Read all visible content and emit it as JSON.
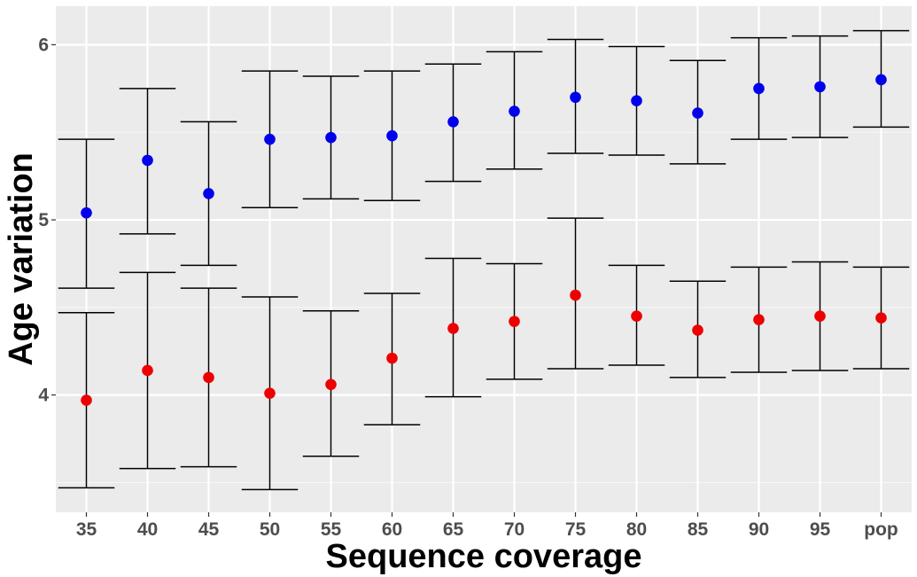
{
  "chart_data": {
    "type": "scatter",
    "title": "",
    "xlabel": "Sequence coverage",
    "ylabel": "Age variation",
    "categories": [
      "35",
      "40",
      "45",
      "50",
      "55",
      "60",
      "65",
      "70",
      "75",
      "80",
      "85",
      "90",
      "95",
      "pop"
    ],
    "yticks": [
      4,
      5,
      6
    ],
    "ylim": [
      3.33,
      6.22
    ],
    "grid": true,
    "legend": "none",
    "series": [
      {
        "color": "#0000ee",
        "values": [
          5.04,
          5.34,
          5.15,
          5.46,
          5.47,
          5.48,
          5.56,
          5.62,
          5.7,
          5.68,
          5.61,
          5.75,
          5.76,
          5.8
        ],
        "lower": [
          4.61,
          4.92,
          4.74,
          5.07,
          5.12,
          5.11,
          5.22,
          5.29,
          5.38,
          5.37,
          5.32,
          5.46,
          5.47,
          5.53
        ],
        "upper": [
          5.46,
          5.75,
          5.56,
          5.85,
          5.82,
          5.85,
          5.89,
          5.96,
          6.03,
          5.99,
          5.91,
          6.04,
          6.05,
          6.08
        ]
      },
      {
        "color": "#ee0000",
        "values": [
          3.97,
          4.14,
          4.1,
          4.01,
          4.06,
          4.21,
          4.38,
          4.42,
          4.57,
          4.45,
          4.37,
          4.43,
          4.45,
          4.44
        ],
        "lower": [
          3.47,
          3.58,
          3.59,
          3.46,
          3.65,
          3.83,
          3.99,
          4.09,
          4.15,
          4.17,
          4.1,
          4.13,
          4.14,
          4.15
        ],
        "upper": [
          4.47,
          4.7,
          4.61,
          4.56,
          4.48,
          4.58,
          4.78,
          4.75,
          5.01,
          4.74,
          4.65,
          4.73,
          4.76,
          4.73
        ]
      }
    ]
  }
}
